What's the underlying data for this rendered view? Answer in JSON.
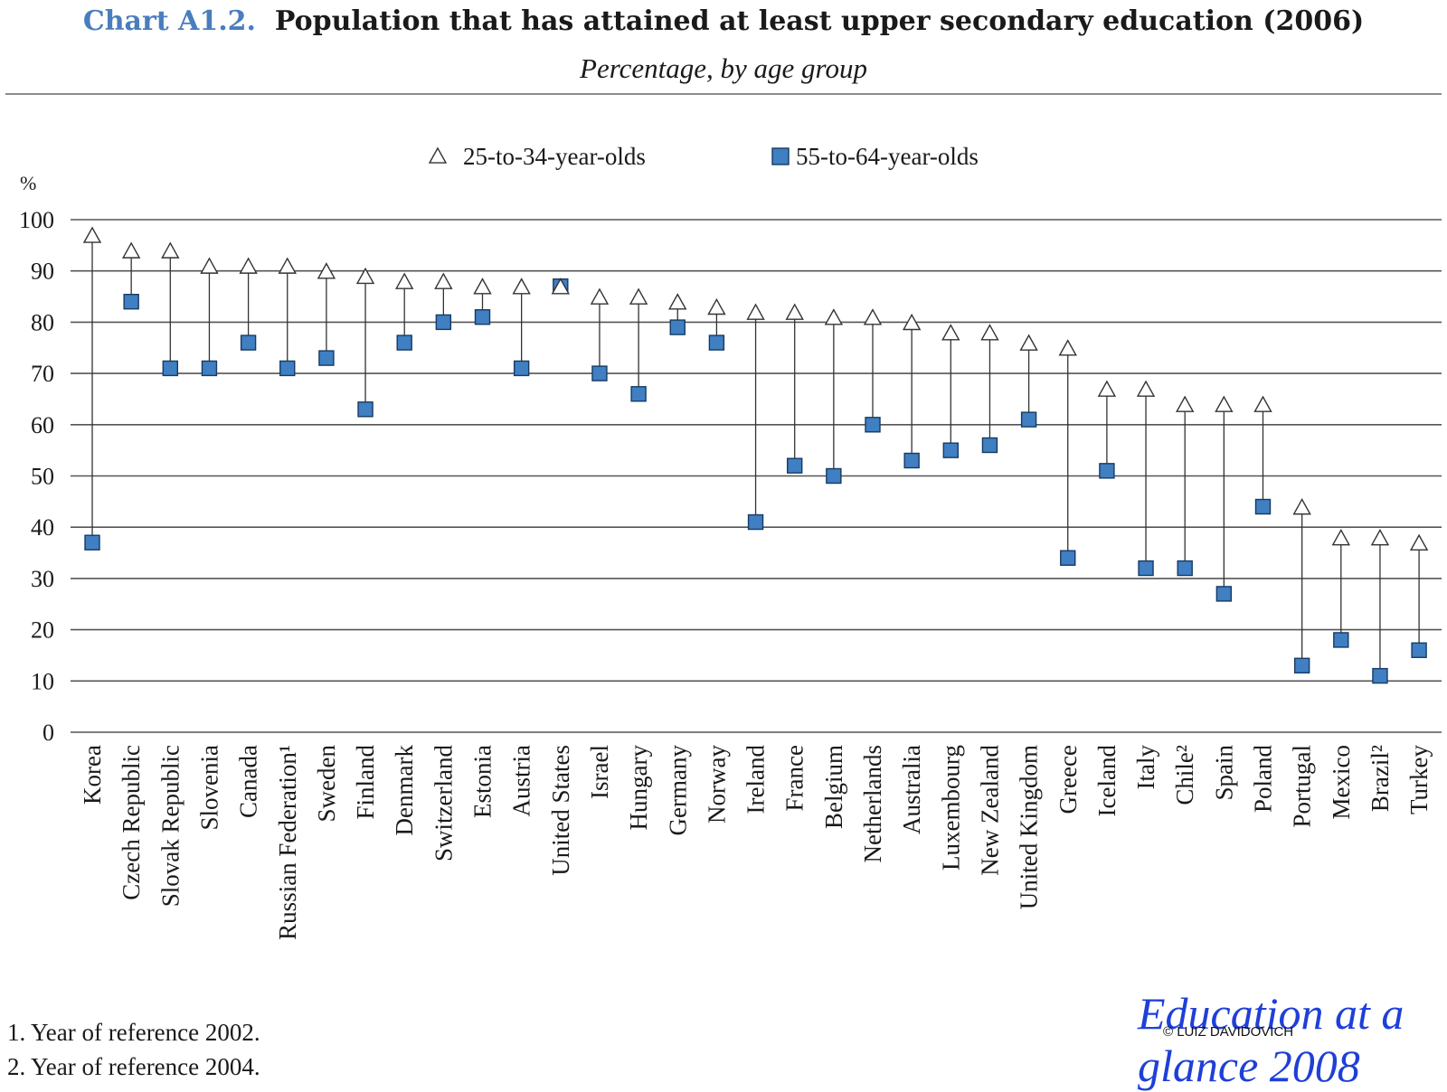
{
  "header": {
    "chart_label": "Chart A1.2.",
    "title": "Population that has attained at least upper secondary education (2006)",
    "subtitle": "Percentage, by age group"
  },
  "chart_data": {
    "type": "scatter",
    "title": "Population that has attained at least upper secondary education (2006)",
    "subtitle": "Percentage, by age group",
    "ylabel": "%",
    "xlabel": "",
    "ylim": [
      0,
      100
    ],
    "yticks": [
      "0",
      "10",
      "20",
      "30",
      "40",
      "50",
      "60",
      "70",
      "80",
      "90",
      "100"
    ],
    "grid": true,
    "legend_position": "top",
    "categories": [
      "Korea",
      "Czech Republic",
      "Slovak Republic",
      "Slovenia",
      "Canada",
      "Russian Federation¹",
      "Sweden",
      "Finland",
      "Denmark",
      "Switzerland",
      "Estonia",
      "Austria",
      "United States",
      "Israel",
      "Hungary",
      "Germany",
      "Norway",
      "Ireland",
      "France",
      "Belgium",
      "Netherlands",
      "Australia",
      "Luxembourg",
      "New Zealand",
      "United Kingdom",
      "Greece",
      "Iceland",
      "Italy",
      "Chile²",
      "Spain",
      "Poland",
      "Portugal",
      "Mexico",
      "Brazil²",
      "Turkey"
    ],
    "series": [
      {
        "name": "25-to-34-year-olds",
        "marker": "open-triangle",
        "color": "#ffffff",
        "values": [
          97,
          94,
          94,
          91,
          91,
          91,
          90,
          89,
          88,
          88,
          87,
          87,
          87,
          85,
          85,
          84,
          83,
          82,
          82,
          81,
          81,
          80,
          78,
          78,
          76,
          75,
          67,
          67,
          64,
          64,
          64,
          44,
          38,
          38,
          37
        ]
      },
      {
        "name": "55-to-64-year-olds",
        "marker": "filled-square",
        "color": "#3f7fc2",
        "values": [
          37,
          84,
          71,
          71,
          76,
          71,
          73,
          63,
          76,
          80,
          81,
          71,
          87,
          70,
          66,
          79,
          76,
          41,
          52,
          50,
          60,
          53,
          55,
          56,
          61,
          34,
          51,
          32,
          32,
          27,
          44,
          13,
          18,
          11,
          16
        ]
      }
    ]
  },
  "footnotes": [
    "1. Year of reference 2002.",
    "2. Year of reference 2004."
  ],
  "watermark": {
    "line1": "Education at a",
    "line2": "glance 2008",
    "copyright": "© LUIZ DAVIDOVICH"
  },
  "colors": {
    "title_label": "#4a7dbd",
    "square_fill": "#3f7fc2",
    "square_stroke": "#173a63",
    "watermark": "#1f3fd8"
  }
}
